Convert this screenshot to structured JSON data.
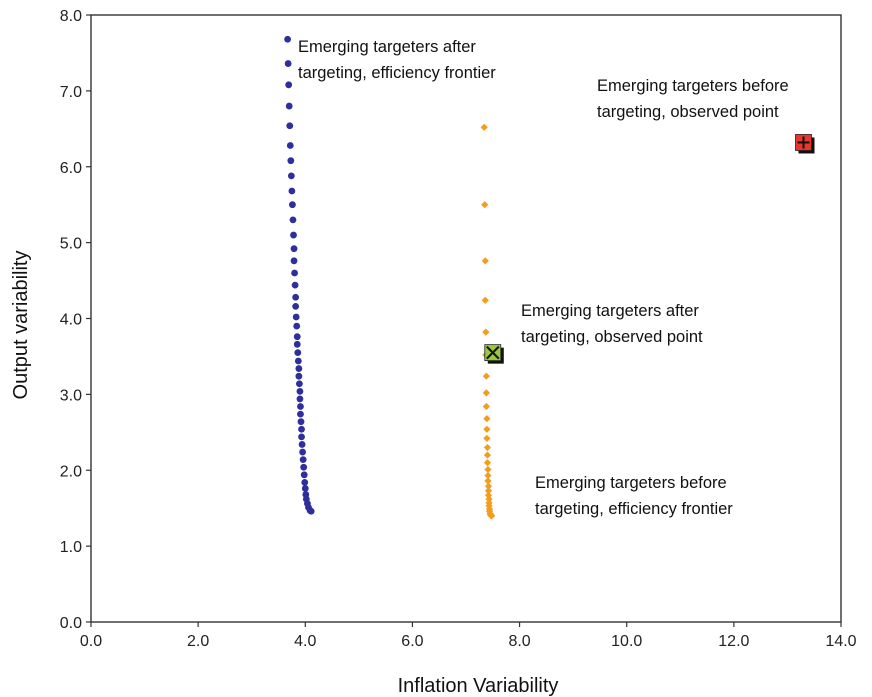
{
  "chart_data": {
    "type": "scatter",
    "xlabel": "Inflation Variability",
    "ylabel": "Output variability",
    "xlim": [
      0,
      14
    ],
    "ylim": [
      0,
      8
    ],
    "x_ticks": [
      "0.0",
      "2.0",
      "4.0",
      "6.0",
      "8.0",
      "10.0",
      "12.0",
      "14.0"
    ],
    "y_ticks": [
      "0.0",
      "1.0",
      "2.0",
      "3.0",
      "4.0",
      "5.0",
      "6.0",
      "7.0",
      "8.0"
    ],
    "grid": false,
    "legend": "none",
    "series": [
      {
        "color": "#2f2f9c",
        "marker": "circle",
        "points": [
          [
            3.67,
            7.68
          ],
          [
            3.68,
            7.36
          ],
          [
            3.69,
            7.08
          ],
          [
            3.7,
            6.8
          ],
          [
            3.71,
            6.54
          ],
          [
            3.72,
            6.28
          ],
          [
            3.73,
            6.08
          ],
          [
            3.74,
            5.88
          ],
          [
            3.75,
            5.68
          ],
          [
            3.76,
            5.5
          ],
          [
            3.77,
            5.3
          ],
          [
            3.78,
            5.1
          ],
          [
            3.79,
            4.92
          ],
          [
            3.79,
            4.76
          ],
          [
            3.8,
            4.6
          ],
          [
            3.81,
            4.44
          ],
          [
            3.82,
            4.28
          ],
          [
            3.82,
            4.16
          ],
          [
            3.83,
            4.02
          ],
          [
            3.84,
            3.9
          ],
          [
            3.85,
            3.76
          ],
          [
            3.85,
            3.66
          ],
          [
            3.86,
            3.55
          ],
          [
            3.87,
            3.44
          ],
          [
            3.88,
            3.34
          ],
          [
            3.88,
            3.24
          ],
          [
            3.89,
            3.14
          ],
          [
            3.9,
            3.04
          ],
          [
            3.9,
            2.94
          ],
          [
            3.91,
            2.84
          ],
          [
            3.91,
            2.74
          ],
          [
            3.92,
            2.64
          ],
          [
            3.93,
            2.54
          ],
          [
            3.93,
            2.44
          ],
          [
            3.94,
            2.34
          ],
          [
            3.95,
            2.24
          ],
          [
            3.96,
            2.14
          ],
          [
            3.97,
            2.04
          ],
          [
            3.98,
            1.94
          ],
          [
            3.99,
            1.84
          ],
          [
            4.0,
            1.76
          ],
          [
            4.01,
            1.68
          ],
          [
            4.02,
            1.62
          ],
          [
            4.04,
            1.56
          ],
          [
            4.06,
            1.51
          ],
          [
            4.09,
            1.47
          ],
          [
            4.11,
            1.46
          ]
        ]
      },
      {
        "color": "#f39c1e",
        "marker": "diamond",
        "points": [
          [
            7.34,
            6.52
          ],
          [
            7.35,
            5.5
          ],
          [
            7.36,
            4.76
          ],
          [
            7.36,
            4.24
          ],
          [
            7.37,
            3.82
          ],
          [
            7.37,
            3.52
          ],
          [
            7.38,
            3.24
          ],
          [
            7.38,
            3.02
          ],
          [
            7.38,
            2.84
          ],
          [
            7.39,
            2.68
          ],
          [
            7.39,
            2.54
          ],
          [
            7.39,
            2.42
          ],
          [
            7.4,
            2.3
          ],
          [
            7.4,
            2.2
          ],
          [
            7.4,
            2.1
          ],
          [
            7.41,
            2.01
          ],
          [
            7.41,
            1.93
          ],
          [
            7.41,
            1.86
          ],
          [
            7.42,
            1.79
          ],
          [
            7.42,
            1.73
          ],
          [
            7.42,
            1.67
          ],
          [
            7.43,
            1.62
          ],
          [
            7.43,
            1.57
          ],
          [
            7.43,
            1.53
          ],
          [
            7.44,
            1.49
          ],
          [
            7.44,
            1.46
          ],
          [
            7.45,
            1.43
          ],
          [
            7.46,
            1.41
          ],
          [
            7.47,
            1.4
          ],
          [
            7.48,
            1.4
          ]
        ]
      },
      {
        "color": "#e8362c",
        "marker": "plus-square",
        "points": [
          [
            13.3,
            6.32
          ]
        ]
      },
      {
        "color": "#9ac93a",
        "marker": "x-square",
        "points": [
          [
            7.5,
            3.55
          ]
        ]
      }
    ],
    "annotations": [
      {
        "lines": [
          "Emerging targeters after",
          "targeting, efficiency frontier"
        ]
      },
      {
        "lines": [
          "Emerging targeters before",
          "targeting, observed point"
        ]
      },
      {
        "lines": [
          "Emerging targeters after",
          "targeting, observed point"
        ]
      },
      {
        "lines": [
          "Emerging targeters before",
          "targeting, efficiency frontier"
        ]
      }
    ]
  }
}
